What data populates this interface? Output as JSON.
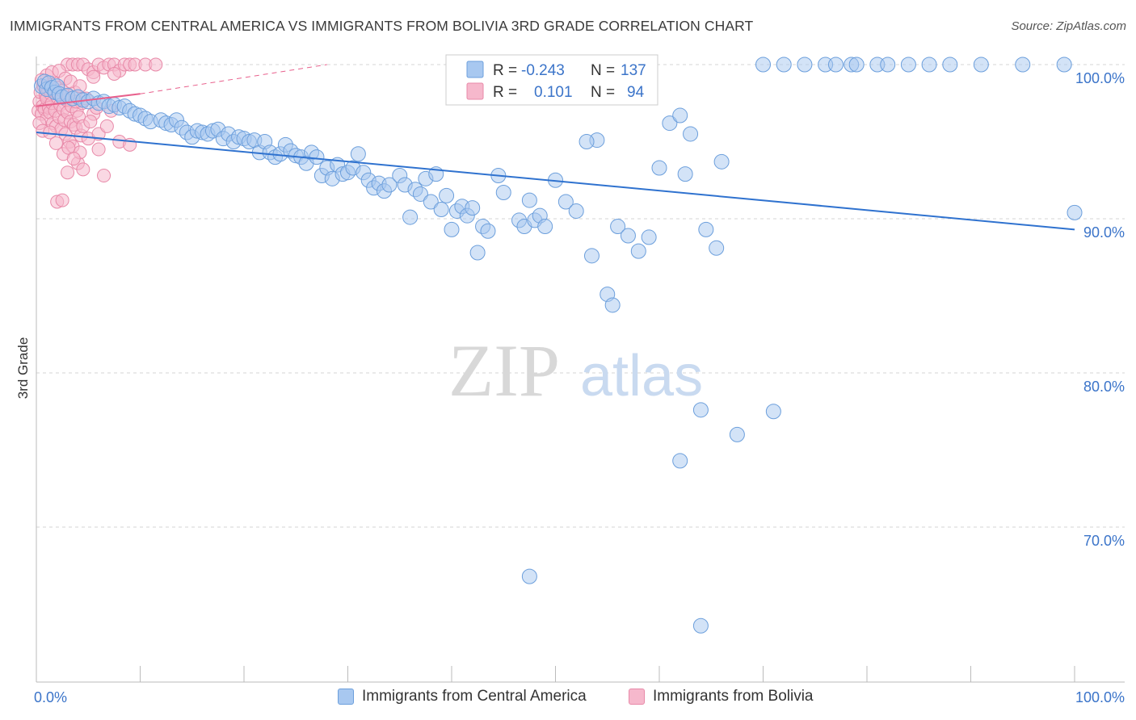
{
  "title": "IMMIGRANTS FROM CENTRAL AMERICA VS IMMIGRANTS FROM BOLIVIA 3RD GRADE CORRELATION CHART",
  "source": "Source: ZipAtlas.com",
  "watermark": {
    "zip": "ZIP",
    "atlas": "atlas"
  },
  "colors": {
    "blue_fill": "#a8c8f0",
    "blue_stroke": "#6c9fdc",
    "blue_line": "#2f72cf",
    "pink_fill": "#f6b8cc",
    "pink_stroke": "#e889a8",
    "pink_line": "#e8608c",
    "axis_label": "#3b74c9",
    "grid": "#d6d6d6"
  },
  "legend": {
    "r_label": "R =",
    "n_label": "N =",
    "rows": [
      {
        "series": "blue",
        "r": "-0.243",
        "n": "137"
      },
      {
        "series": "pink",
        "r": "0.101",
        "n": "94"
      }
    ]
  },
  "chart_data": {
    "type": "scatter",
    "title": "IMMIGRANTS FROM CENTRAL AMERICA VS IMMIGRANTS FROM BOLIVIA 3RD GRADE CORRELATION CHART",
    "xlabel": "",
    "ylabel": "3rd Grade",
    "xlim": [
      0,
      100
    ],
    "ylim": [
      60.5,
      101.0
    ],
    "x_tick_labels": [
      "0.0%",
      "100.0%"
    ],
    "y_ticks": [
      70,
      80,
      90,
      100
    ],
    "y_tick_labels": [
      "70.0%",
      "80.0%",
      "90.0%",
      "100.0%"
    ],
    "grid": true,
    "legend_position": "top-center",
    "series": [
      {
        "name": "Immigrants from Central America",
        "color": "#6c9fdc",
        "trend": {
          "x": [
            0,
            100
          ],
          "y": [
            95.6,
            89.3
          ]
        },
        "points": [
          [
            0.5,
            98.6
          ],
          [
            0.8,
            98.9
          ],
          [
            1.0,
            98.4
          ],
          [
            1.2,
            98.8
          ],
          [
            1.5,
            98.5
          ],
          [
            1.8,
            98.2
          ],
          [
            2.0,
            98.6
          ],
          [
            2.2,
            98.1
          ],
          [
            2.5,
            97.9
          ],
          [
            3.0,
            98.0
          ],
          [
            3.5,
            97.8
          ],
          [
            4.0,
            97.9
          ],
          [
            4.5,
            97.7
          ],
          [
            5.0,
            97.6
          ],
          [
            5.5,
            97.8
          ],
          [
            6.0,
            97.5
          ],
          [
            6.5,
            97.6
          ],
          [
            7.0,
            97.3
          ],
          [
            7.5,
            97.4
          ],
          [
            8.0,
            97.2
          ],
          [
            8.5,
            97.3
          ],
          [
            9.0,
            97.0
          ],
          [
            9.5,
            96.8
          ],
          [
            10.0,
            96.7
          ],
          [
            10.5,
            96.5
          ],
          [
            11.0,
            96.3
          ],
          [
            12.0,
            96.4
          ],
          [
            12.5,
            96.2
          ],
          [
            13.0,
            96.1
          ],
          [
            13.5,
            96.4
          ],
          [
            14.0,
            95.9
          ],
          [
            14.5,
            95.6
          ],
          [
            15.0,
            95.3
          ],
          [
            15.5,
            95.7
          ],
          [
            16.0,
            95.6
          ],
          [
            16.5,
            95.5
          ],
          [
            17.0,
            95.7
          ],
          [
            17.5,
            95.8
          ],
          [
            18.0,
            95.2
          ],
          [
            18.5,
            95.5
          ],
          [
            19.0,
            95.0
          ],
          [
            19.5,
            95.3
          ],
          [
            20.0,
            95.2
          ],
          [
            20.5,
            95.0
          ],
          [
            21.0,
            95.1
          ],
          [
            21.5,
            94.3
          ],
          [
            22.0,
            95.0
          ],
          [
            22.5,
            94.3
          ],
          [
            23.0,
            94.0
          ],
          [
            23.5,
            94.2
          ],
          [
            24.0,
            94.8
          ],
          [
            24.5,
            94.4
          ],
          [
            25.0,
            94.1
          ],
          [
            25.5,
            94.0
          ],
          [
            26.0,
            93.6
          ],
          [
            26.5,
            94.3
          ],
          [
            27.0,
            94.0
          ],
          [
            27.5,
            92.8
          ],
          [
            28.0,
            93.3
          ],
          [
            28.5,
            92.6
          ],
          [
            29.0,
            93.5
          ],
          [
            29.5,
            92.9
          ],
          [
            30.0,
            93.0
          ],
          [
            30.5,
            93.3
          ],
          [
            31.0,
            94.2
          ],
          [
            31.5,
            93.0
          ],
          [
            32.0,
            92.5
          ],
          [
            32.5,
            92.0
          ],
          [
            33.0,
            92.3
          ],
          [
            33.5,
            91.8
          ],
          [
            34.0,
            92.2
          ],
          [
            35.0,
            92.8
          ],
          [
            35.5,
            92.2
          ],
          [
            36.0,
            90.1
          ],
          [
            36.5,
            91.9
          ],
          [
            37.0,
            91.6
          ],
          [
            37.5,
            92.6
          ],
          [
            38.0,
            91.1
          ],
          [
            38.5,
            92.9
          ],
          [
            39.0,
            90.6
          ],
          [
            39.5,
            91.5
          ],
          [
            40.0,
            89.3
          ],
          [
            40.5,
            90.5
          ],
          [
            41.0,
            90.8
          ],
          [
            41.5,
            90.2
          ],
          [
            42.0,
            90.7
          ],
          [
            42.5,
            87.8
          ],
          [
            43.0,
            89.5
          ],
          [
            43.5,
            89.2
          ],
          [
            44.5,
            92.8
          ],
          [
            45.0,
            91.7
          ],
          [
            46.5,
            89.9
          ],
          [
            47.0,
            89.5
          ],
          [
            47.5,
            91.2
          ],
          [
            48.0,
            89.9
          ],
          [
            48.5,
            90.2
          ],
          [
            49.0,
            89.5
          ],
          [
            50.0,
            92.5
          ],
          [
            51.0,
            91.1
          ],
          [
            52.0,
            90.5
          ],
          [
            53.5,
            87.6
          ],
          [
            54.0,
            95.1
          ],
          [
            55.0,
            85.1
          ],
          [
            55.5,
            84.4
          ],
          [
            56.0,
            89.5
          ],
          [
            57.0,
            88.9
          ],
          [
            58.0,
            87.9
          ],
          [
            59.0,
            88.8
          ],
          [
            60.0,
            93.3
          ],
          [
            61.0,
            96.2
          ],
          [
            62.0,
            96.7
          ],
          [
            62.5,
            92.9
          ],
          [
            63.0,
            95.5
          ],
          [
            64.0,
            77.6
          ],
          [
            64.5,
            89.3
          ],
          [
            65.5,
            88.1
          ],
          [
            66.0,
            93.7
          ],
          [
            67.5,
            76.0
          ],
          [
            70.0,
            100.0
          ],
          [
            71.0,
            77.5
          ],
          [
            72.0,
            100.0
          ],
          [
            74.0,
            100.0
          ],
          [
            76.0,
            100.0
          ],
          [
            77.0,
            100.0
          ],
          [
            78.5,
            100.0
          ],
          [
            79.0,
            100.0
          ],
          [
            81.0,
            100.0
          ],
          [
            82.0,
            100.0
          ],
          [
            84.0,
            100.0
          ],
          [
            86.0,
            100.0
          ],
          [
            88.0,
            100.0
          ],
          [
            91.0,
            100.0
          ],
          [
            95.0,
            100.0
          ],
          [
            99.0,
            100.0
          ],
          [
            100.0,
            90.4
          ],
          [
            47.5,
            66.8
          ],
          [
            62.0,
            74.3
          ],
          [
            64.0,
            63.6
          ],
          [
            52.0,
            100.0
          ],
          [
            56.0,
            100.0
          ],
          [
            58.0,
            100.0
          ],
          [
            53.0,
            95.0
          ]
        ]
      },
      {
        "name": "Immigrants from Bolivia",
        "color": "#e889a8",
        "trend": {
          "x": [
            0,
            10
          ],
          "y": [
            97.3,
            98.1
          ]
        },
        "trend_extension": {
          "x": [
            10,
            28
          ],
          "y": [
            98.1,
            100.0
          ]
        },
        "points": [
          [
            0.2,
            97.0
          ],
          [
            0.3,
            97.6
          ],
          [
            0.4,
            98.2
          ],
          [
            0.5,
            96.8
          ],
          [
            0.6,
            97.3
          ],
          [
            0.7,
            98.6
          ],
          [
            0.8,
            97.1
          ],
          [
            0.9,
            98.0
          ],
          [
            1.0,
            96.5
          ],
          [
            1.0,
            97.8
          ],
          [
            1.1,
            98.4
          ],
          [
            1.2,
            97.2
          ],
          [
            1.3,
            96.9
          ],
          [
            1.4,
            98.1
          ],
          [
            1.5,
            97.5
          ],
          [
            1.6,
            96.2
          ],
          [
            1.7,
            98.8
          ],
          [
            1.8,
            97.0
          ],
          [
            1.9,
            96.0
          ],
          [
            2.0,
            97.9
          ],
          [
            2.1,
            98.5
          ],
          [
            2.2,
            96.6
          ],
          [
            2.3,
            97.4
          ],
          [
            2.4,
            95.8
          ],
          [
            2.5,
            98.3
          ],
          [
            2.6,
            97.1
          ],
          [
            2.7,
            96.4
          ],
          [
            2.8,
            95.5
          ],
          [
            2.9,
            97.7
          ],
          [
            3.0,
            96.9
          ],
          [
            3.1,
            98.0
          ],
          [
            3.2,
            95.0
          ],
          [
            3.3,
            96.3
          ],
          [
            3.4,
            97.3
          ],
          [
            3.5,
            94.7
          ],
          [
            3.6,
            96.1
          ],
          [
            3.7,
            98.2
          ],
          [
            3.8,
            95.9
          ],
          [
            3.9,
            97.0
          ],
          [
            4.0,
            93.6
          ],
          [
            4.1,
            96.6
          ],
          [
            4.2,
            94.3
          ],
          [
            4.3,
            95.4
          ],
          [
            4.4,
            97.5
          ],
          [
            4.5,
            96.0
          ],
          [
            5.0,
            95.2
          ],
          [
            5.5,
            96.8
          ],
          [
            6.0,
            94.5
          ],
          [
            6.5,
            92.8
          ],
          [
            3.0,
            100.0
          ],
          [
            3.5,
            100.0
          ],
          [
            4.0,
            100.0
          ],
          [
            4.5,
            100.0
          ],
          [
            5.0,
            99.7
          ],
          [
            5.5,
            99.5
          ],
          [
            6.0,
            100.0
          ],
          [
            6.5,
            99.8
          ],
          [
            7.0,
            100.0
          ],
          [
            7.5,
            100.0
          ],
          [
            8.0,
            99.6
          ],
          [
            8.5,
            100.0
          ],
          [
            9.0,
            100.0
          ],
          [
            9.5,
            100.0
          ],
          [
            10.5,
            100.0
          ],
          [
            11.5,
            100.0
          ],
          [
            5.5,
            99.2
          ],
          [
            7.5,
            99.4
          ],
          [
            2.0,
            91.1
          ],
          [
            2.5,
            91.2
          ],
          [
            8.0,
            95.0
          ],
          [
            9.0,
            94.8
          ],
          [
            6.0,
            95.5
          ],
          [
            3.0,
            93.0
          ],
          [
            4.5,
            93.2
          ],
          [
            1.0,
            99.3
          ],
          [
            0.5,
            99.0
          ],
          [
            1.5,
            99.5
          ],
          [
            2.2,
            99.6
          ],
          [
            2.8,
            99.1
          ],
          [
            3.3,
            98.9
          ],
          [
            3.8,
            97.6
          ],
          [
            4.2,
            98.6
          ],
          [
            4.8,
            97.8
          ],
          [
            5.2,
            96.3
          ],
          [
            5.8,
            97.2
          ],
          [
            6.8,
            96.0
          ],
          [
            7.2,
            97.0
          ],
          [
            0.3,
            96.2
          ],
          [
            0.6,
            95.7
          ],
          [
            1.3,
            95.6
          ],
          [
            1.9,
            94.9
          ],
          [
            2.6,
            94.2
          ],
          [
            3.1,
            94.6
          ],
          [
            3.6,
            93.9
          ]
        ]
      }
    ]
  },
  "bottom_legend": [
    {
      "series": "blue",
      "label": "Immigrants from Central America"
    },
    {
      "series": "pink",
      "label": "Immigrants from Bolivia"
    }
  ]
}
